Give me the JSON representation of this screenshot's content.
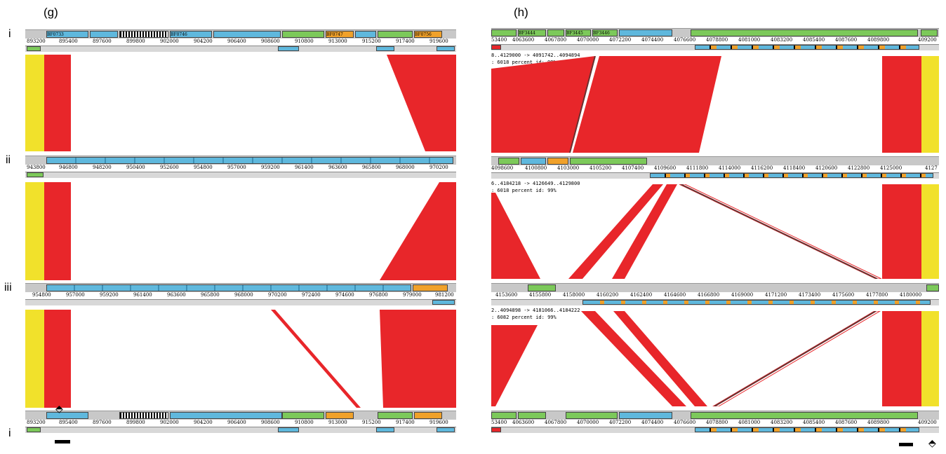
{
  "panels": {
    "g": {
      "label": "(g)",
      "rows": [
        "i",
        "ii",
        "iii",
        "i"
      ],
      "coords": [
        [
          "893200",
          "895400",
          "897600",
          "899800",
          "902000",
          "904200",
          "906400",
          "908600",
          "910800",
          "913000",
          "915200",
          "917400",
          "919600"
        ],
        [
          "943800",
          "946800",
          "948200",
          "950400",
          "952600",
          "954800",
          "957000",
          "959200",
          "961400",
          "963600",
          "965800",
          "968000",
          "970200"
        ],
        [
          "954800",
          "957000",
          "959200",
          "961400",
          "963600",
          "965800",
          "968000",
          "970200",
          "972400",
          "974600",
          "976800",
          "979000",
          "981200"
        ],
        [
          "893200",
          "895400",
          "897600",
          "899800",
          "902000",
          "904200",
          "906400",
          "908600",
          "910800",
          "913000",
          "915200",
          "917400",
          "919600"
        ]
      ],
      "genes_top": [
        "BF0733",
        "BF0746",
        "BF0747",
        "BF0756"
      ]
    },
    "h": {
      "label": "(h)",
      "coords": [
        [
          "53400",
          "4063600",
          "4067800",
          "4070000",
          "4072200",
          "4074400",
          "4076600",
          "4078800",
          "4081000",
          "4083200",
          "4085400",
          "4087600",
          "4089800",
          "409200"
        ],
        [
          "4098600",
          "4100800",
          "4103000",
          "4105200",
          "4107400",
          "4109600",
          "4111800",
          "4114000",
          "4116200",
          "4118400",
          "4120600",
          "4122800",
          "4125000",
          "4127"
        ],
        [
          "4153600",
          "4155800",
          "4158000",
          "4160200",
          "4162400",
          "4164600",
          "4166800",
          "4169000",
          "4171200",
          "4173400",
          "4175600",
          "4177800",
          "4180000"
        ],
        [
          "53400",
          "4063600",
          "4067800",
          "4070000",
          "4072200",
          "4074400",
          "4076600",
          "4078800",
          "4081000",
          "4083200",
          "4085400",
          "4087600",
          "4089800",
          "409200"
        ]
      ],
      "cmp_lines": [
        {
          "l1": "8..4129000 -> 4091742..4094894",
          "l2": ": 6018  percent id: 99%"
        },
        {
          "l1": "6..4184218 -> 4126649..4129800",
          "l2": ": 6018  percent id: 99%"
        },
        {
          "l1": "2..4094898 -> 4181066..4184222",
          "l2": ": 6082  percent id: 99%"
        }
      ],
      "genes_top": [
        "BF3444",
        "BF3445",
        "BF3446"
      ]
    }
  },
  "colors": {
    "match": "#e8262a",
    "yellow": "#f1e12b",
    "gene_blue": "#5fb8dd",
    "gene_green": "#7cc95a",
    "gene_orange": "#f0a12a"
  }
}
